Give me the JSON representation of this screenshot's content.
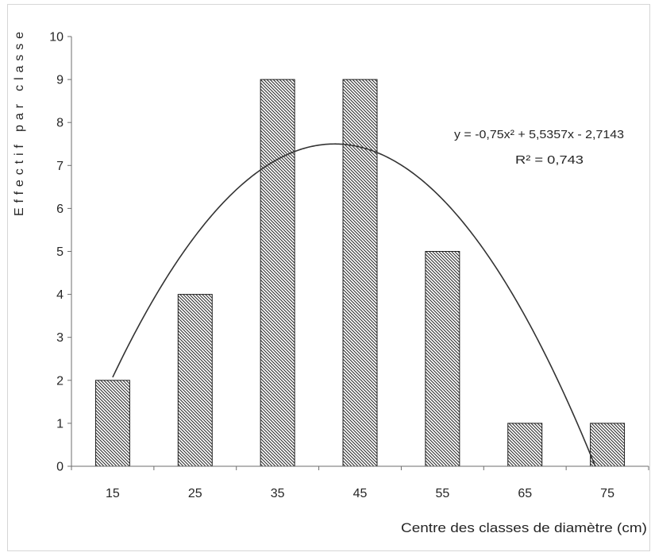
{
  "chart_data": {
    "type": "bar",
    "categories": [
      "15",
      "25",
      "35",
      "45",
      "55",
      "65",
      "75"
    ],
    "values": [
      2,
      4,
      9,
      9,
      5,
      1,
      1
    ],
    "xlabel": "Centre des classes de diamètre (cm)",
    "ylabel": "Effectif par classe",
    "ylim": [
      0,
      10
    ],
    "yticks": [
      0,
      1,
      2,
      3,
      4,
      5,
      6,
      7,
      8,
      9,
      10
    ],
    "grid": false,
    "trendline": {
      "type": "polynomial",
      "a": -0.75,
      "b": 5.5357,
      "c": -2.7143,
      "equation_text": "y = -0,75x² + 5,5357x - 2,7143",
      "r2_text": "R² = 0,743"
    },
    "colors": {
      "background": "#ffffff",
      "bar_fill": "#ffffff",
      "bar_hatch": "#2f2f2f",
      "bar_outline": "#1f1f1f",
      "trendline": "#333333",
      "axis": "#6e6e6e",
      "text": "#262626",
      "frame": "#d6d6d6"
    }
  }
}
